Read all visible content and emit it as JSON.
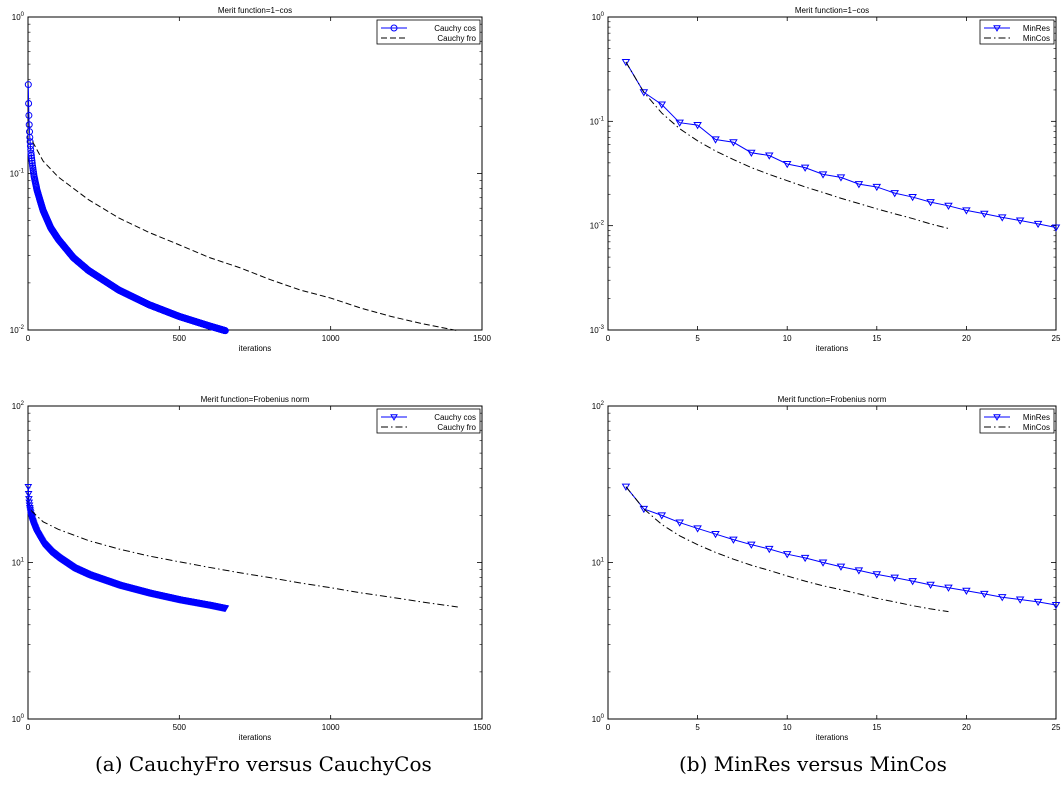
{
  "captions": {
    "a": "(a) CauchyFro versus CauchyCos",
    "b": "(b) MinRes versus MinCos"
  },
  "colors": {
    "primary_series": "#0000ff",
    "secondary_series": "#000000",
    "axes": "#000000"
  },
  "chart_data": [
    {
      "type": "line",
      "title": "Merit function=1−cos",
      "xlabel": "iterations",
      "ylabel": "",
      "xlim": [
        0,
        1500
      ],
      "ylim": [
        0.01,
        1
      ],
      "yscale": "log",
      "xticks": [
        0,
        500,
        1000,
        1500
      ],
      "xtick_labels": [
        "0",
        "500",
        "1000",
        "1500"
      ],
      "yticks": [
        1,
        0.1,
        0.01
      ],
      "ytick_labels": [
        [
          "10",
          "0"
        ],
        [
          "10",
          "-1"
        ],
        [
          "10",
          "-2"
        ]
      ],
      "grid": false,
      "legend_position": "top-right",
      "series": [
        {
          "name": "Cauchy cos",
          "style": "solid",
          "marker": "circle",
          "marker_spacing": "every-iteration",
          "color": "#0000ff",
          "x": [
            1,
            2,
            3,
            4,
            5,
            6,
            8,
            10,
            15,
            20,
            30,
            50,
            75,
            100,
            150,
            200,
            300,
            400,
            500,
            600,
            652
          ],
          "y": [
            0.37,
            0.28,
            0.235,
            0.205,
            0.185,
            0.17,
            0.15,
            0.135,
            0.112,
            0.096,
            0.078,
            0.058,
            0.045,
            0.038,
            0.029,
            0.024,
            0.018,
            0.0145,
            0.0122,
            0.0106,
            0.0099
          ]
        },
        {
          "name": "Cauchy fro",
          "style": "dashed",
          "marker": "none",
          "color": "#000000",
          "x": [
            15,
            50,
            100,
            200,
            300,
            400,
            500,
            600,
            700,
            800,
            900,
            1000,
            1100,
            1200,
            1300,
            1420
          ],
          "y": [
            0.16,
            0.12,
            0.095,
            0.068,
            0.052,
            0.042,
            0.035,
            0.029,
            0.025,
            0.021,
            0.018,
            0.016,
            0.0138,
            0.0122,
            0.011,
            0.0099
          ]
        }
      ]
    },
    {
      "type": "line",
      "title": "Merit function=1−cos",
      "xlabel": "iterations",
      "ylabel": "",
      "xlim": [
        0,
        25
      ],
      "ylim": [
        0.001,
        1
      ],
      "yscale": "log",
      "xticks": [
        0,
        5,
        10,
        15,
        20,
        25
      ],
      "xtick_labels": [
        "0",
        "5",
        "10",
        "15",
        "20",
        "25"
      ],
      "yticks": [
        1,
        0.1,
        0.01,
        0.001
      ],
      "ytick_labels": [
        [
          "10",
          "0"
        ],
        [
          "10",
          "-1"
        ],
        [
          "10",
          "-2"
        ],
        [
          "10",
          "-3"
        ]
      ],
      "grid": false,
      "legend_position": "top-right",
      "series": [
        {
          "name": "MinRes",
          "style": "solid",
          "marker": "triangle-down",
          "color": "#0000ff",
          "x": [
            1,
            2,
            3,
            4,
            5,
            6,
            7,
            8,
            9,
            10,
            11,
            12,
            13,
            14,
            15,
            16,
            17,
            18,
            19,
            20,
            21,
            22,
            23,
            24,
            25
          ],
          "y": [
            0.37,
            0.19,
            0.145,
            0.097,
            0.092,
            0.067,
            0.063,
            0.05,
            0.047,
            0.039,
            0.036,
            0.031,
            0.029,
            0.025,
            0.0235,
            0.0205,
            0.0188,
            0.0168,
            0.0155,
            0.014,
            0.013,
            0.012,
            0.0112,
            0.0104,
            0.0096
          ]
        },
        {
          "name": "MinCos",
          "style": "dash-dot",
          "marker": "none",
          "color": "#000000",
          "x": [
            1,
            2,
            3,
            4,
            5,
            6,
            7,
            8,
            9,
            10,
            11,
            12,
            13,
            14,
            15,
            16,
            17,
            18,
            19
          ],
          "y": [
            0.37,
            0.19,
            0.12,
            0.085,
            0.065,
            0.052,
            0.043,
            0.036,
            0.031,
            0.027,
            0.0235,
            0.0208,
            0.0183,
            0.0163,
            0.0145,
            0.013,
            0.0117,
            0.0104,
            0.0094
          ]
        }
      ]
    },
    {
      "type": "line",
      "title": "Merit function=Frobenius norm",
      "xlabel": "iterations",
      "ylabel": "",
      "xlim": [
        0,
        1500
      ],
      "ylim": [
        1,
        100
      ],
      "yscale": "log",
      "xticks": [
        0,
        500,
        1000,
        1500
      ],
      "xtick_labels": [
        "0",
        "500",
        "1000",
        "1500"
      ],
      "yticks": [
        100,
        10,
        1
      ],
      "ytick_labels": [
        [
          "10",
          "2"
        ],
        [
          "10",
          "1"
        ],
        [
          "10",
          "0"
        ]
      ],
      "grid": false,
      "legend_position": "top-right",
      "series": [
        {
          "name": "Cauchy cos",
          "style": "solid",
          "marker": "triangle-down",
          "marker_spacing": "every-iteration",
          "color": "#0000ff",
          "x": [
            1,
            2,
            3,
            4,
            5,
            6,
            8,
            10,
            15,
            20,
            30,
            50,
            75,
            100,
            150,
            200,
            300,
            400,
            500,
            600,
            652
          ],
          "y": [
            30.5,
            27.5,
            25.5,
            24.2,
            23.2,
            22.4,
            21.2,
            20.2,
            18.5,
            17.3,
            15.5,
            13.3,
            11.8,
            10.8,
            9.3,
            8.4,
            7.2,
            6.4,
            5.8,
            5.35,
            5.1
          ]
        },
        {
          "name": "Cauchy fro",
          "style": "dash-dot",
          "marker": "none",
          "color": "#000000",
          "x": [
            10,
            50,
            100,
            200,
            300,
            400,
            500,
            600,
            700,
            800,
            900,
            1000,
            1100,
            1200,
            1300,
            1420
          ],
          "y": [
            21.5,
            18.2,
            16.3,
            13.8,
            12.2,
            11.0,
            10.1,
            9.3,
            8.6,
            8.0,
            7.4,
            6.9,
            6.4,
            6.0,
            5.6,
            5.2
          ]
        }
      ]
    },
    {
      "type": "line",
      "title": "Merit function=Frobenius norm",
      "xlabel": "iterations",
      "ylabel": "",
      "xlim": [
        0,
        25
      ],
      "ylim": [
        1,
        100
      ],
      "yscale": "log",
      "xticks": [
        0,
        5,
        10,
        15,
        20,
        25
      ],
      "xtick_labels": [
        "0",
        "5",
        "10",
        "15",
        "20",
        "25"
      ],
      "yticks": [
        100,
        10,
        1
      ],
      "ytick_labels": [
        [
          "10",
          "2"
        ],
        [
          "10",
          "1"
        ],
        [
          "10",
          "0"
        ]
      ],
      "grid": false,
      "legend_position": "top-right",
      "series": [
        {
          "name": "MinRes",
          "style": "solid",
          "marker": "triangle-down",
          "color": "#0000ff",
          "x": [
            1,
            2,
            3,
            4,
            5,
            6,
            7,
            8,
            9,
            10,
            11,
            12,
            13,
            14,
            15,
            16,
            17,
            18,
            19,
            20,
            21,
            22,
            23,
            24,
            25
          ],
          "y": [
            30.5,
            22,
            20,
            18,
            16.5,
            15.2,
            14,
            13,
            12.2,
            11.3,
            10.7,
            10,
            9.4,
            8.9,
            8.4,
            8,
            7.6,
            7.2,
            6.9,
            6.6,
            6.3,
            6,
            5.8,
            5.6,
            5.35
          ]
        },
        {
          "name": "MinCos",
          "style": "dash-dot",
          "marker": "none",
          "color": "#000000",
          "x": [
            1,
            2,
            3,
            4,
            5,
            6,
            7,
            8,
            9,
            10,
            11,
            12,
            13,
            14,
            15,
            16,
            17,
            18,
            19
          ],
          "y": [
            30.5,
            22,
            17.5,
            14.8,
            13,
            11.6,
            10.5,
            9.6,
            8.9,
            8.2,
            7.6,
            7.1,
            6.7,
            6.3,
            5.9,
            5.6,
            5.3,
            5.05,
            4.85
          ]
        }
      ]
    }
  ]
}
